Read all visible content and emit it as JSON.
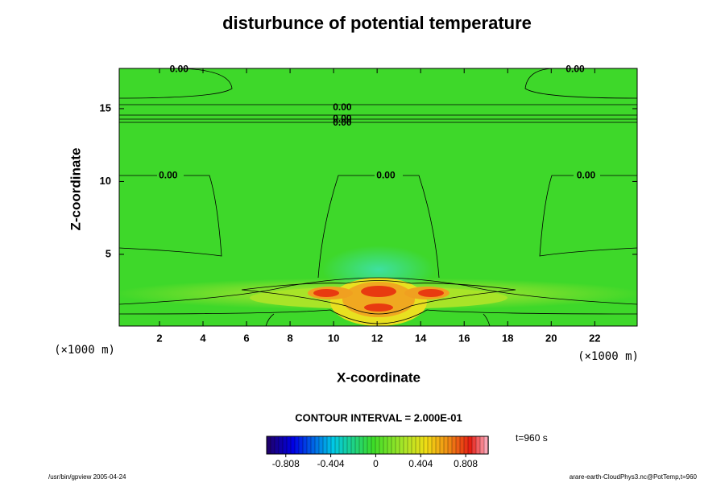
{
  "chart_data": {
    "type": "contour",
    "title": "disturbunce of potential temperature",
    "x_label": "X-coordinate",
    "y_label": "Z-coordinate",
    "x_unit": "(×1000 m)",
    "y_unit": "(×1000 m)",
    "xlim": [
      0.15,
      23.95
    ],
    "ylim": [
      0.08,
      17.76
    ],
    "xticks": [
      2,
      4,
      6,
      8,
      10,
      12,
      14,
      16,
      18,
      20,
      22
    ],
    "yticks": [
      5,
      10,
      15
    ],
    "contour_labels": [
      {
        "x": 2.9,
        "y": 17.7,
        "value": 0,
        "label": "0.00"
      },
      {
        "x": 21.1,
        "y": 17.7,
        "value": 0,
        "label": "0.00"
      },
      {
        "x": 10.4,
        "y": 15.05,
        "value": 0,
        "label": "0.00"
      },
      {
        "x": 10.4,
        "y": 14.3,
        "value": 0,
        "label": "0.00"
      },
      {
        "x": 10.4,
        "y": 14.0,
        "value": 0,
        "label": "0.00"
      },
      {
        "x": 2.4,
        "y": 10.4,
        "value": 0,
        "label": "0.00"
      },
      {
        "x": 12.4,
        "y": 10.4,
        "value": 0,
        "label": "0.00"
      },
      {
        "x": 21.6,
        "y": 10.4,
        "value": 0,
        "label": "0.00"
      }
    ],
    "contour_interval": "CONTOUR INTERVAL = 2.000E-01",
    "time_label": "t=960 s",
    "clim": [
      -0.98,
      1.01
    ],
    "cticks": [
      {
        "value": -0.808,
        "label": "-0.808"
      },
      {
        "value": -0.404,
        "label": "-0.404"
      },
      0,
      {
        "value": 0.404,
        "label": "0.404"
      },
      {
        "value": 0.808,
        "label": "0.808"
      }
    ],
    "footer_left": "/usr/bin/gpview 2005-04-24",
    "footer_right": "arare-earth-CloudPhys3.nc@PotTemp,t=960"
  }
}
